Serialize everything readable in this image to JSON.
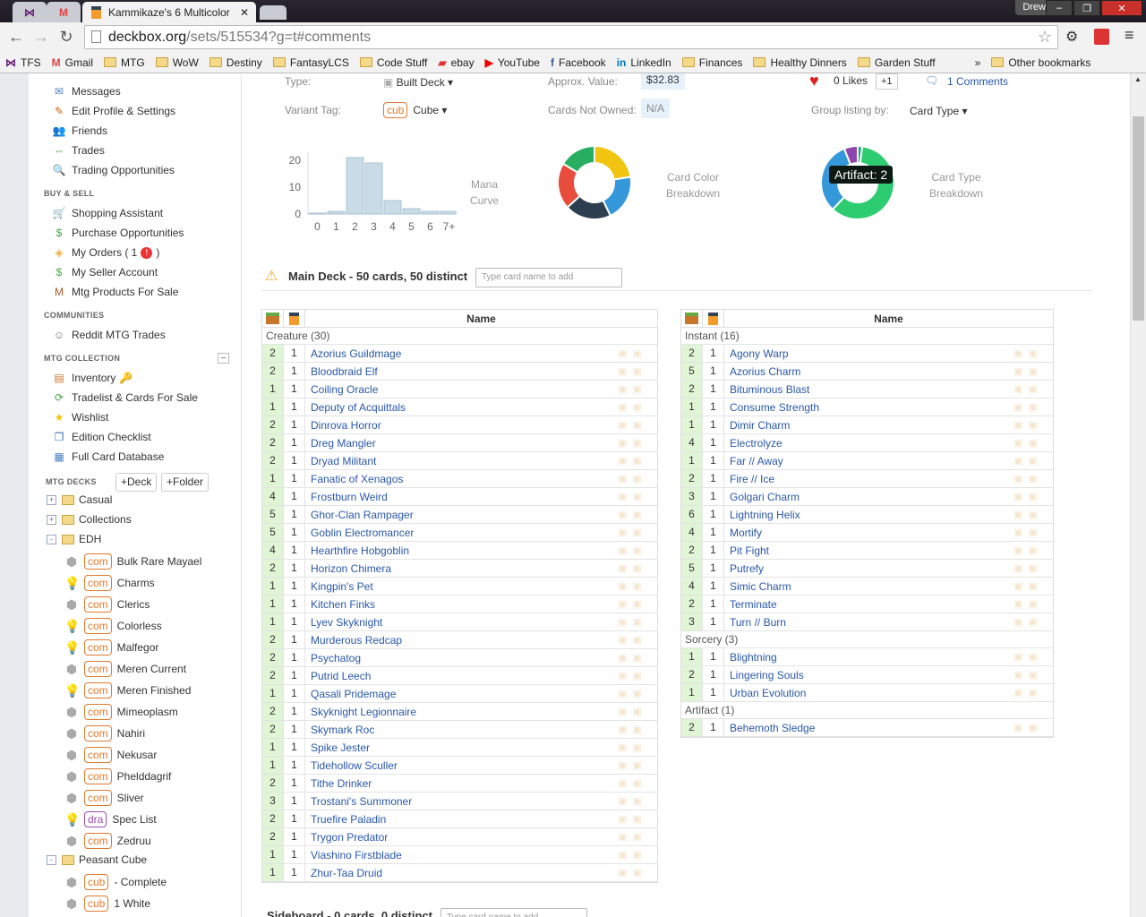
{
  "browser": {
    "tabs": [
      {
        "icon": "visual-studio-icon"
      },
      {
        "icon": "gmail-icon"
      },
      {
        "title": "Kammikaze's 6 Multicolor",
        "icon": "deckbox-icon",
        "active": true
      }
    ],
    "profile": "Drew",
    "url_host": "deckbox.org",
    "url_path": "/sets/515534?g=t#comments",
    "bookmarks": [
      "TFS",
      "Gmail",
      "MTG",
      "WoW",
      "Destiny",
      "FantasyLCS",
      "Code Stuff",
      "ebay",
      "YouTube",
      "Facebook",
      "LinkedIn",
      "Finances",
      "Healthy Dinners",
      "Garden Stuff"
    ],
    "more": "»",
    "other_bookmarks": "Other bookmarks"
  },
  "sidebar": {
    "account": [
      "Messages",
      "Edit Profile & Settings",
      "Friends",
      "Trades",
      "Trading Opportunities"
    ],
    "buy_sell_header": "BUY & SELL",
    "buy_sell": [
      "Shopping Assistant",
      "Purchase Opportunities",
      "My Orders ( 1",
      "My Seller Account",
      "Mtg Products For Sale"
    ],
    "orders_close": ")",
    "communities_header": "COMMUNITIES",
    "communities": [
      "Reddit MTG Trades"
    ],
    "collection_header": "MTG COLLECTION",
    "collection": [
      "Inventory",
      "Tradelist & Cards For Sale",
      "Wishlist",
      "Edition Checklist",
      "Full Card Database"
    ],
    "decks_header": "MTG DECKS",
    "add_deck": "+Deck",
    "add_folder": "+Folder",
    "folders": [
      {
        "name": "Casual",
        "state": "+"
      },
      {
        "name": "Collections",
        "state": "+"
      },
      {
        "name": "EDH",
        "state": "-"
      }
    ],
    "edh_decks": [
      {
        "tag": "com",
        "name": "Bulk Rare Mayael",
        "icon": "cube"
      },
      {
        "tag": "com",
        "name": "Charms",
        "icon": "bulb"
      },
      {
        "tag": "com",
        "name": "Clerics",
        "icon": "cube"
      },
      {
        "tag": "com",
        "name": "Colorless",
        "icon": "bulb"
      },
      {
        "tag": "com",
        "name": "Malfegor",
        "icon": "bulb"
      },
      {
        "tag": "com",
        "name": "Meren Current",
        "icon": "cube"
      },
      {
        "tag": "com",
        "name": "Meren Finished",
        "icon": "bulb"
      },
      {
        "tag": "com",
        "name": "Mimeoplasm",
        "icon": "cube"
      },
      {
        "tag": "com",
        "name": "Nahiri",
        "icon": "cube"
      },
      {
        "tag": "com",
        "name": "Nekusar",
        "icon": "cube"
      },
      {
        "tag": "com",
        "name": "Phelddagrif",
        "icon": "cube"
      },
      {
        "tag": "com",
        "name": "Sliver",
        "icon": "cube"
      },
      {
        "tag": "dra",
        "name": "Spec List",
        "icon": "bulb"
      },
      {
        "tag": "com",
        "name": "Zedruu",
        "icon": "cube"
      }
    ],
    "peasant": {
      "name": "Peasant Cube",
      "state": "-"
    },
    "peasant_decks": [
      {
        "tag": "cub",
        "name": "- Complete",
        "icon": "cube"
      },
      {
        "tag": "cub",
        "name": "1 White",
        "icon": "cube"
      }
    ]
  },
  "deck_info": {
    "type_label": "Type:",
    "type_value": "Built Deck",
    "variant_label": "Variant Tag:",
    "variant_tag": "cub",
    "variant_value": "Cube",
    "value_label": "Approx. Value:",
    "value": "$32.83",
    "not_owned_label": "Cards Not Owned:",
    "not_owned": "N/A",
    "likes": "0 Likes",
    "plus_one": "+1",
    "comments": "1 Comments",
    "group_label": "Group listing by:",
    "group_value": "Card Type"
  },
  "chart_data": [
    {
      "type": "bar",
      "title": "Mana Curve",
      "categories": [
        "0",
        "1",
        "2",
        "3",
        "4",
        "5",
        "6",
        "7+"
      ],
      "values": [
        0,
        1,
        21,
        19,
        5,
        2,
        1,
        1
      ],
      "yticks": [
        "0",
        "10",
        "20"
      ],
      "ylim": [
        0,
        22
      ],
      "color": "#c9dbe6"
    },
    {
      "type": "pie",
      "title": "Card Color Breakdown",
      "donut": true,
      "slices": [
        {
          "label": "White",
          "value": 11,
          "color": "#f1c40f"
        },
        {
          "label": "Blue",
          "value": 10,
          "color": "#3498db"
        },
        {
          "label": "Black",
          "value": 10,
          "color": "#2c3e50"
        },
        {
          "label": "Red",
          "value": 10,
          "color": "#e74c3c"
        },
        {
          "label": "Green",
          "value": 8,
          "color": "#27ae60"
        }
      ]
    },
    {
      "type": "pie",
      "title": "Card Type Breakdown",
      "donut": true,
      "tooltip": "Artifact: 2",
      "slices": [
        {
          "label": "Artifact",
          "value": 1,
          "color": "#16a085"
        },
        {
          "label": "Creature",
          "value": 30,
          "color": "#2ecc71"
        },
        {
          "label": "Instant",
          "value": 16,
          "color": "#3498db"
        },
        {
          "label": "Sorcery",
          "value": 3,
          "color": "#8e44ad"
        }
      ]
    }
  ],
  "chart_titles": {
    "mana": [
      "Mana",
      "Curve"
    ],
    "color": [
      "Card Color",
      "Breakdown"
    ],
    "type": [
      "Card Type",
      "Breakdown"
    ]
  },
  "main_deck": {
    "title": "Main Deck - 50 cards, 50 distinct",
    "add_placeholder": "Type card name to add",
    "col_name": "Name",
    "left": [
      {
        "group": "Creature (30)",
        "cards": [
          [
            2,
            1,
            "Azorius Guildmage"
          ],
          [
            2,
            1,
            "Bloodbraid Elf"
          ],
          [
            1,
            1,
            "Coiling Oracle"
          ],
          [
            1,
            1,
            "Deputy of Acquittals"
          ],
          [
            2,
            1,
            "Dinrova Horror"
          ],
          [
            2,
            1,
            "Dreg Mangler"
          ],
          [
            2,
            1,
            "Dryad Militant"
          ],
          [
            1,
            1,
            "Fanatic of Xenagos"
          ],
          [
            4,
            1,
            "Frostburn Weird"
          ],
          [
            5,
            1,
            "Ghor-Clan Rampager"
          ],
          [
            5,
            1,
            "Goblin Electromancer"
          ],
          [
            4,
            1,
            "Hearthfire Hobgoblin"
          ],
          [
            2,
            1,
            "Horizon Chimera"
          ],
          [
            1,
            1,
            "Kingpin's Pet"
          ],
          [
            1,
            1,
            "Kitchen Finks"
          ],
          [
            1,
            1,
            "Lyev Skyknight"
          ],
          [
            2,
            1,
            "Murderous Redcap"
          ],
          [
            2,
            1,
            "Psychatog"
          ],
          [
            2,
            1,
            "Putrid Leech"
          ],
          [
            1,
            1,
            "Qasali Pridemage"
          ],
          [
            2,
            1,
            "Skyknight Legionnaire"
          ],
          [
            2,
            1,
            "Skymark Roc"
          ],
          [
            1,
            1,
            "Spike Jester"
          ],
          [
            1,
            1,
            "Tidehollow Sculler"
          ],
          [
            2,
            1,
            "Tithe Drinker"
          ],
          [
            3,
            1,
            "Trostani's Summoner"
          ],
          [
            2,
            1,
            "Truefire Paladin"
          ],
          [
            2,
            1,
            "Trygon Predator"
          ],
          [
            1,
            1,
            "Viashino Firstblade"
          ],
          [
            1,
            1,
            "Zhur-Taa Druid"
          ]
        ]
      }
    ],
    "right": [
      {
        "group": "Instant (16)",
        "cards": [
          [
            2,
            1,
            "Agony Warp"
          ],
          [
            5,
            1,
            "Azorius Charm"
          ],
          [
            2,
            1,
            "Bituminous Blast"
          ],
          [
            1,
            1,
            "Consume Strength"
          ],
          [
            1,
            1,
            "Dimir Charm"
          ],
          [
            4,
            1,
            "Electrolyze"
          ],
          [
            1,
            1,
            "Far // Away"
          ],
          [
            2,
            1,
            "Fire // Ice"
          ],
          [
            3,
            1,
            "Golgari Charm"
          ],
          [
            6,
            1,
            "Lightning Helix"
          ],
          [
            4,
            1,
            "Mortify"
          ],
          [
            2,
            1,
            "Pit Fight"
          ],
          [
            5,
            1,
            "Putrefy"
          ],
          [
            4,
            1,
            "Simic Charm"
          ],
          [
            2,
            1,
            "Terminate"
          ],
          [
            3,
            1,
            "Turn // Burn"
          ]
        ]
      },
      {
        "group": "Sorcery (3)",
        "cards": [
          [
            1,
            1,
            "Blightning"
          ],
          [
            2,
            1,
            "Lingering Souls"
          ],
          [
            1,
            1,
            "Urban Evolution"
          ]
        ]
      },
      {
        "group": "Artifact (1)",
        "cards": [
          [
            2,
            1,
            "Behemoth Sledge"
          ]
        ]
      }
    ]
  },
  "sideboard": {
    "title": "Sideboard - 0 cards, 0 distinct",
    "add_placeholder": "Type card name to add"
  }
}
